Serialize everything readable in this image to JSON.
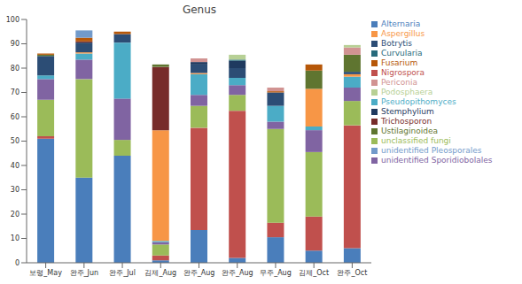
{
  "chart_data": {
    "type": "bar",
    "title": "Genus",
    "stacked": true,
    "grid": false,
    "legend": "right",
    "categories": [
      "보령_May",
      "완주_Jun",
      "완주_Jul",
      "김제_Aug",
      "완주_Aug",
      "완주_Aug",
      "무주_Aug",
      "김제_Oct",
      "완주_Oct"
    ],
    "ylim": [
      0,
      100
    ],
    "yticks": [
      0,
      10,
      20,
      30,
      40,
      50,
      60,
      70,
      80,
      90,
      100
    ],
    "series": [
      {
        "name": "Alternaria",
        "color": "#4a7ebb",
        "values": [
          51,
          35,
          44,
          1,
          13.5,
          2,
          10.5,
          5,
          6
        ]
      },
      {
        "name": "Nigrospora",
        "color": "#c0504d",
        "values": [
          1,
          0,
          0,
          2,
          42,
          60.5,
          6,
          14,
          50.5
        ]
      },
      {
        "name": "unclassified fungi",
        "color": "#9bbb59",
        "values": [
          15,
          40.5,
          6.5,
          4.5,
          9,
          6.5,
          38.5,
          26.5,
          10
        ]
      },
      {
        "name": "unidentified Sporidiobolales",
        "color": "#8064a2",
        "values": [
          8.5,
          8,
          17,
          1,
          4.5,
          4,
          3,
          9,
          5.5
        ]
      },
      {
        "name": "Pseudopithomyces",
        "color": "#4bacc6",
        "values": [
          1.5,
          2.5,
          23,
          0.5,
          8.5,
          3,
          6.5,
          1.5,
          4.5
        ]
      },
      {
        "name": "Aspergillus",
        "color": "#f79646",
        "values": [
          0,
          0.5,
          0,
          45.5,
          0.5,
          0,
          0,
          15.5,
          1
        ]
      },
      {
        "name": "Botrytis",
        "color": "#2c4d75",
        "values": [
          8,
          4,
          3.5,
          0,
          3.5,
          4,
          5.5,
          0,
          1
        ]
      },
      {
        "name": "Trichosporon",
        "color": "#772c2a",
        "values": [
          0,
          0.5,
          0,
          26,
          0,
          0,
          0,
          0,
          0
        ]
      },
      {
        "name": "Ustilaginoidea",
        "color": "#5f7530",
        "values": [
          0.5,
          0,
          0,
          1,
          0,
          0,
          0,
          7.5,
          7
        ]
      },
      {
        "name": "Stemphylium",
        "color": "#1f3a5f",
        "values": [
          0,
          0,
          0,
          0,
          1,
          3,
          0,
          0,
          0
        ]
      },
      {
        "name": "Curvularia",
        "color": "#276a7c",
        "values": [
          0,
          0,
          0,
          0,
          0,
          0.5,
          0,
          0,
          0
        ]
      },
      {
        "name": "Fusarium",
        "color": "#b65708",
        "values": [
          0.5,
          1.5,
          1,
          0,
          0,
          0,
          0.5,
          2.5,
          0
        ]
      },
      {
        "name": "unidentified Pleosporales",
        "color": "#729aca",
        "values": [
          0,
          3,
          0,
          0,
          0,
          0,
          0,
          0,
          0
        ]
      },
      {
        "name": "Periconia",
        "color": "#d19392",
        "values": [
          0,
          0,
          0,
          0,
          1.5,
          0,
          1.5,
          0,
          3
        ]
      },
      {
        "name": "Podosphaera",
        "color": "#b7d095",
        "values": [
          0,
          0,
          0,
          0,
          0,
          2,
          0,
          0,
          1
        ]
      }
    ]
  }
}
